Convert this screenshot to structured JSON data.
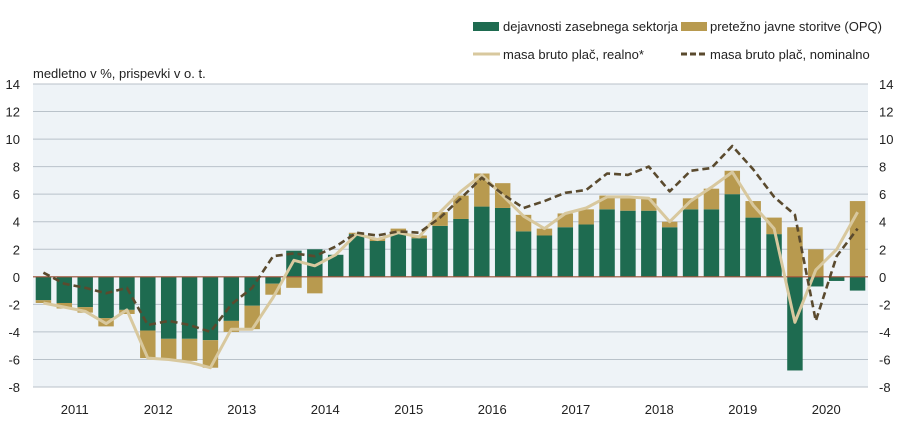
{
  "chart_data": {
    "type": "bar",
    "stacked": true,
    "title": "",
    "ylabel": "medletno v %, prispevki v o. t.",
    "xlabel": "",
    "ylim": [
      -8,
      14
    ],
    "yticks": [
      14,
      12,
      10,
      8,
      6,
      4,
      2,
      0,
      -2,
      -4,
      -6,
      -8
    ],
    "grid": true,
    "background": "#eef3f7",
    "legend_position": "top-right",
    "year_labels": [
      "2011",
      "2012",
      "2013",
      "2014",
      "2015",
      "2016",
      "2017",
      "2018",
      "2019",
      "2020"
    ],
    "categories": [
      "2011Q1",
      "2011Q2",
      "2011Q3",
      "2011Q4",
      "2012Q1",
      "2012Q2",
      "2012Q3",
      "2012Q4",
      "2013Q1",
      "2013Q2",
      "2013Q3",
      "2013Q4",
      "2014Q1",
      "2014Q2",
      "2014Q3",
      "2014Q4",
      "2015Q1",
      "2015Q2",
      "2015Q3",
      "2015Q4",
      "2016Q1",
      "2016Q2",
      "2016Q3",
      "2016Q4",
      "2017Q1",
      "2017Q2",
      "2017Q3",
      "2017Q4",
      "2018Q1",
      "2018Q2",
      "2018Q3",
      "2018Q4",
      "2019Q1",
      "2019Q2",
      "2019Q3",
      "2019Q4",
      "2020Q1",
      "2020Q2",
      "2020Q3",
      "2020Q4"
    ],
    "series": [
      {
        "name": "dejavnosti zasebnega sektorja",
        "kind": "bar",
        "color": "#1e6b50",
        "values": [
          -1.7,
          -1.9,
          -2.2,
          -3.0,
          -2.4,
          -3.9,
          -4.5,
          -4.5,
          -4.6,
          -3.2,
          -2.1,
          -0.5,
          1.9,
          2.0,
          1.6,
          3.1,
          2.6,
          3.2,
          2.8,
          3.7,
          4.2,
          5.1,
          5.0,
          3.3,
          3.0,
          3.6,
          3.8,
          4.9,
          4.8,
          4.8,
          3.6,
          4.9,
          4.9,
          6.0,
          4.3,
          3.1,
          -6.8,
          -0.7,
          -0.3,
          -1.0
        ]
      },
      {
        "name": "pretežno javne storitve (OPQ)",
        "kind": "bar",
        "color": "#b89a4f",
        "values": [
          -0.2,
          -0.4,
          -0.4,
          -0.6,
          -0.3,
          -2.0,
          -1.5,
          -1.6,
          -2.0,
          -0.8,
          -1.7,
          -0.8,
          -0.8,
          -1.2,
          0.0,
          0.1,
          0.2,
          0.3,
          0.2,
          1.0,
          1.7,
          2.4,
          1.8,
          1.2,
          0.5,
          1.0,
          1.1,
          1.0,
          0.9,
          0.9,
          0.4,
          0.8,
          1.5,
          1.7,
          1.2,
          1.2,
          3.6,
          2.0,
          0.0,
          5.5
        ]
      },
      {
        "name": "masa bruto plač, realno*",
        "kind": "line",
        "color": "#d8c89e",
        "values": [
          -1.9,
          -2.2,
          -2.5,
          -3.4,
          -2.4,
          -5.9,
          -6.0,
          -6.2,
          -6.6,
          -3.8,
          -3.8,
          -1.5,
          1.2,
          0.8,
          1.6,
          3.1,
          2.7,
          3.2,
          2.9,
          4.7,
          6.2,
          7.4,
          5.9,
          4.4,
          3.5,
          4.6,
          5.0,
          5.8,
          5.8,
          5.7,
          4.0,
          5.5,
          6.5,
          7.6,
          5.2,
          3.5,
          -3.3,
          0.5,
          2.0,
          4.7
        ]
      },
      {
        "name": "masa bruto plač, nominalno",
        "kind": "line-dashed",
        "color": "#5a4a2e",
        "values": [
          0.3,
          -0.5,
          -0.8,
          -1.2,
          -0.8,
          -3.5,
          -3.2,
          -3.5,
          -4.0,
          -2.0,
          -0.8,
          1.5,
          1.7,
          1.5,
          2.2,
          3.2,
          3.0,
          3.3,
          3.2,
          4.3,
          5.7,
          7.2,
          6.0,
          5.0,
          5.5,
          6.1,
          6.3,
          7.5,
          7.4,
          8.0,
          6.2,
          7.7,
          7.9,
          9.5,
          7.8,
          5.8,
          4.5,
          -3.2,
          1.5,
          3.5
        ]
      }
    ]
  },
  "legend": {
    "items": [
      {
        "label": "dejavnosti zasebnega sektorja",
        "type": "bar",
        "color": "#1e6b50"
      },
      {
        "label": "pretežno javne storitve (OPQ)",
        "type": "bar",
        "color": "#b89a4f"
      },
      {
        "label": "masa bruto plač, realno*",
        "type": "line",
        "color": "#d8c89e"
      },
      {
        "label": "masa bruto plač, nominalno",
        "type": "dashed",
        "color": "#5a4a2e"
      }
    ]
  }
}
